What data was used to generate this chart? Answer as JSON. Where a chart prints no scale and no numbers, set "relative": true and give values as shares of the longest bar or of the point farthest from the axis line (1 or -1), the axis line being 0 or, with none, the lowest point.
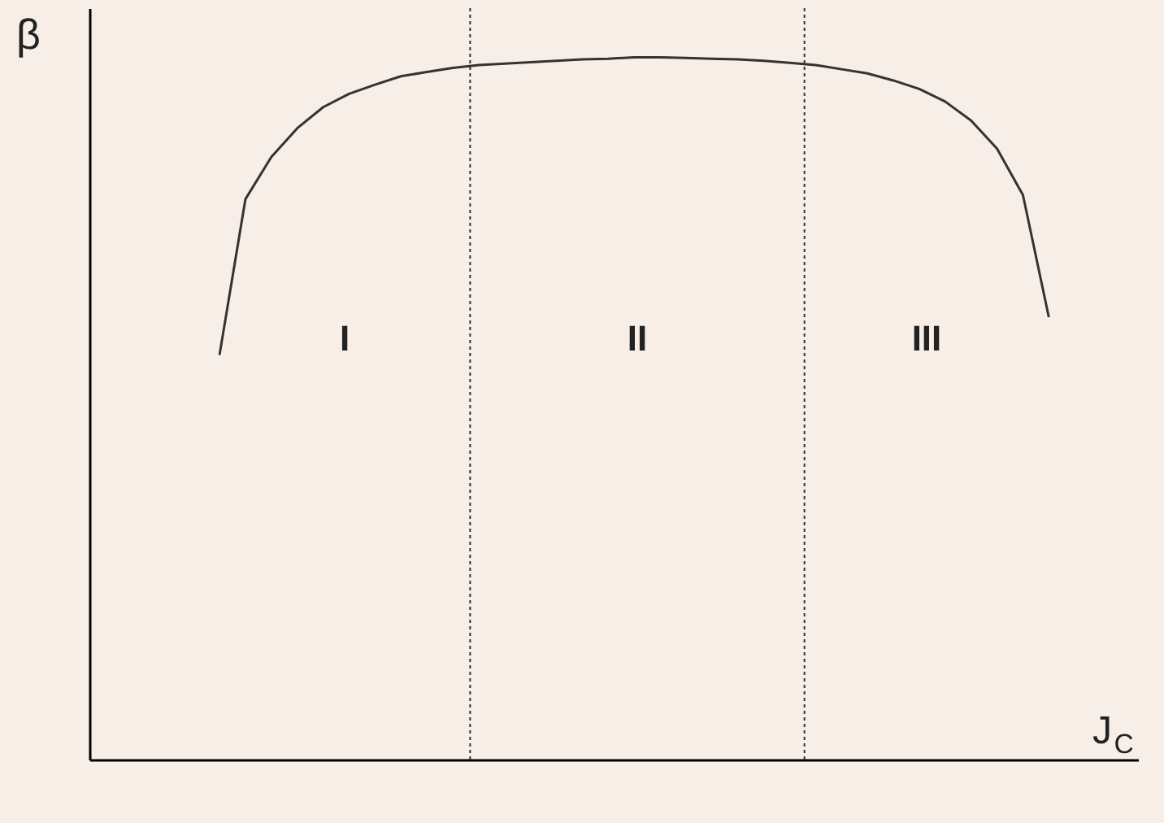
{
  "chart_data": {
    "type": "line",
    "relative": true,
    "xlabel": "J$_{C}$",
    "ylabel": "β",
    "grid": false,
    "marker": "none",
    "line_style": "solid",
    "categories": [
      null,
      null,
      null,
      null,
      null,
      null,
      null,
      null,
      null,
      null,
      null,
      null,
      null,
      null,
      null,
      null,
      null,
      null,
      null,
      null,
      null,
      null,
      null,
      null,
      null,
      null,
      null,
      null,
      null,
      null,
      null,
      null,
      null
    ],
    "series": [
      {
        "color": "#333333",
        "values": [
          0.576,
          0.798,
          0.858,
          0.899,
          0.929,
          0.948,
          0.961,
          0.973,
          0.979,
          0.985,
          0.989,
          0.991,
          0.993,
          0.995,
          0.997,
          0.998,
          1,
          1,
          0.999,
          0.998,
          0.997,
          0.995,
          0.992,
          0.989,
          0.983,
          0.977,
          0.967,
          0.955,
          0.937,
          0.91,
          0.87,
          0.804,
          0.63
        ]
      }
    ],
    "annotations": [
      "I",
      "II",
      "III"
    ]
  }
}
